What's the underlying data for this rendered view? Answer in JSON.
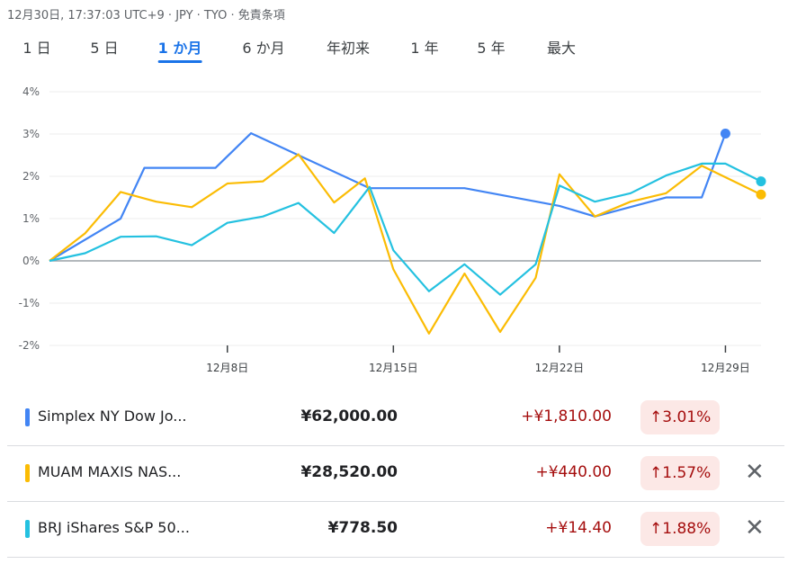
{
  "header": {
    "meta": "12月30日, 17:37:03 UTC+9 · JPY · TYO · 免責条項"
  },
  "tabs": [
    {
      "label": "1 日",
      "active": false
    },
    {
      "label": "5 日",
      "active": false
    },
    {
      "label": "1 か月",
      "active": true
    },
    {
      "label": "6 か月",
      "active": false
    },
    {
      "label": "年初来",
      "active": false
    },
    {
      "label": "1 年",
      "active": false
    },
    {
      "label": "5 年",
      "active": false
    },
    {
      "label": "最大",
      "active": false
    }
  ],
  "chart_data": {
    "type": "line",
    "y_ticks": [
      "4%",
      "3%",
      "2%",
      "1%",
      "0%",
      "-1%",
      "-2%"
    ],
    "ylim": [
      -2,
      4
    ],
    "x_ticks": [
      {
        "label": "12月8日",
        "x": 8
      },
      {
        "label": "12月15日",
        "x": 15
      },
      {
        "label": "12月22日",
        "x": 22
      },
      {
        "label": "12月29日",
        "x": 29
      }
    ],
    "xlim": [
      0.5,
      30.5
    ],
    "series": [
      {
        "name": "Simplex NY Dow Jo...",
        "color": "#4285f4",
        "points": [
          [
            0.5,
            0
          ],
          [
            3.5,
            1.0
          ],
          [
            4.5,
            2.2
          ],
          [
            7.5,
            2.2
          ],
          [
            9,
            3.02
          ],
          [
            14,
            1.72
          ],
          [
            18,
            1.72
          ],
          [
            22,
            1.3
          ],
          [
            23.5,
            1.05
          ],
          [
            26.5,
            1.5
          ],
          [
            28,
            1.5
          ],
          [
            29,
            3.01
          ]
        ]
      },
      {
        "name": "MUAM MAXIS NAS...",
        "color": "#fbbc04",
        "points": [
          [
            0.5,
            0
          ],
          [
            2,
            0.65
          ],
          [
            3.5,
            1.63
          ],
          [
            5,
            1.4
          ],
          [
            6.5,
            1.27
          ],
          [
            8,
            1.83
          ],
          [
            9.5,
            1.88
          ],
          [
            11,
            2.52
          ],
          [
            12.5,
            1.38
          ],
          [
            13.8,
            1.95
          ],
          [
            15,
            -0.2
          ],
          [
            16.5,
            -1.72
          ],
          [
            18,
            -0.3
          ],
          [
            19.5,
            -1.68
          ],
          [
            21,
            -0.4
          ],
          [
            22,
            2.05
          ],
          [
            23.5,
            1.05
          ],
          [
            25,
            1.4
          ],
          [
            26.5,
            1.6
          ],
          [
            28,
            2.25
          ],
          [
            30.5,
            1.57
          ]
        ]
      },
      {
        "name": "BRJ iShares S&P 50...",
        "color": "#24c1e0",
        "points": [
          [
            0.5,
            0
          ],
          [
            2,
            0.18
          ],
          [
            3.5,
            0.57
          ],
          [
            5,
            0.58
          ],
          [
            6.5,
            0.37
          ],
          [
            8,
            0.9
          ],
          [
            9.5,
            1.05
          ],
          [
            11,
            1.37
          ],
          [
            12.5,
            0.66
          ],
          [
            14,
            1.75
          ],
          [
            15,
            0.25
          ],
          [
            16.5,
            -0.72
          ],
          [
            18,
            -0.08
          ],
          [
            19.5,
            -0.8
          ],
          [
            21,
            -0.08
          ],
          [
            22,
            1.78
          ],
          [
            23.5,
            1.4
          ],
          [
            25,
            1.6
          ],
          [
            26.5,
            2.02
          ],
          [
            28,
            2.3
          ],
          [
            29,
            2.3
          ],
          [
            30.5,
            1.88
          ]
        ]
      }
    ],
    "grid": true
  },
  "rows": [
    {
      "name": "Simplex NY Dow Jo...",
      "color": "#4285f4",
      "price": "¥62,000.00",
      "change": "+¥1,810.00",
      "pct": "3.01%",
      "removable": false
    },
    {
      "name": "MUAM MAXIS NAS...",
      "color": "#fbbc04",
      "price": "¥28,520.00",
      "change": "+¥440.00",
      "pct": "1.57%",
      "removable": true
    },
    {
      "name": "BRJ iShares S&P 50...",
      "color": "#24c1e0",
      "price": "¥778.50",
      "change": "+¥14.40",
      "pct": "1.88%",
      "removable": true
    }
  ],
  "icons": {
    "up": "arrow-up-icon",
    "close": "close-icon"
  }
}
